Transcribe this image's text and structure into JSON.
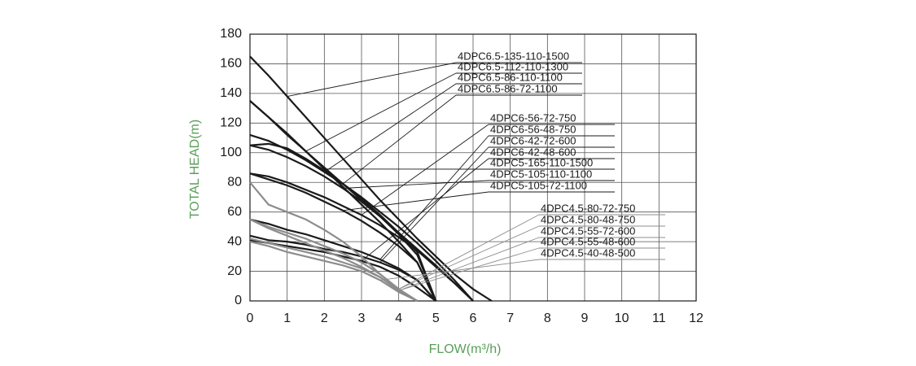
{
  "chart_data": {
    "type": "line",
    "x_label": "FLOW(m³/h)",
    "y_label": "TOTAL HEAD(m)",
    "xlim": [
      0,
      12
    ],
    "xticks": [
      0,
      1,
      2,
      3,
      4,
      5,
      6,
      7,
      8,
      9,
      10,
      11,
      12
    ],
    "ylim": [
      0,
      180
    ],
    "yticks": [
      0,
      20,
      40,
      60,
      80,
      100,
      120,
      140,
      160,
      180
    ],
    "grid": true,
    "x": [
      0,
      0.5,
      1,
      1.5,
      2,
      2.5,
      3,
      3.5,
      4,
      4.5,
      5,
      5.5,
      6,
      6.5
    ],
    "series": [
      {
        "name": "4DPC6.5-135-110-1500",
        "color": "#1a1a1a",
        "values": [
          165,
          152,
          138,
          124,
          110,
          96,
          82,
          68,
          55,
          42,
          30,
          18,
          8,
          0
        ]
      },
      {
        "name": "4DPC6.5-112-110-1300",
        "color": "#1a1a1a",
        "values": [
          135,
          124,
          112,
          101,
          90,
          79,
          68,
          57,
          46,
          35,
          24,
          12,
          0,
          null
        ]
      },
      {
        "name": "4DPC6.5-86-110-1100",
        "color": "#1a1a1a",
        "values": [
          112,
          108,
          102,
          95,
          87,
          79,
          70,
          60,
          50,
          39,
          27,
          14,
          0,
          null
        ]
      },
      {
        "name": "4DPC6.5-86-72-1100",
        "color": "#1a1a1a",
        "values": [
          105,
          106,
          103,
          96,
          88,
          79,
          69,
          58,
          46,
          33,
          0,
          null,
          null,
          null
        ]
      },
      {
        "name": "4DPC6-56-72-750",
        "color": "#1a1a1a",
        "values": [
          86,
          84,
          80,
          75,
          70,
          64,
          58,
          51,
          43,
          34,
          23,
          12,
          0,
          null
        ]
      },
      {
        "name": "4DPC6-56-48-750",
        "color": "#1a1a1a",
        "values": [
          55,
          52,
          48,
          45,
          41,
          37,
          33,
          28,
          22,
          14,
          0,
          null,
          null,
          null
        ]
      },
      {
        "name": "4DPC6-42-72-600",
        "color": "#1a1a1a",
        "values": [
          44,
          41,
          40,
          38,
          35,
          33,
          30,
          26,
          21,
          14,
          0,
          null,
          null,
          null
        ]
      },
      {
        "name": "4DPC6-42-48-600",
        "color": "#1a1a1a",
        "values": [
          41,
          39,
          37,
          35,
          33,
          30,
          27,
          23,
          17,
          9,
          0,
          null,
          null,
          null
        ]
      },
      {
        "name": "4DPC5-165-110-1500",
        "color": "#1a1a1a",
        "values": [
          135,
          124,
          113,
          101,
          89,
          77,
          65,
          53,
          40,
          26,
          0,
          null,
          null,
          null
        ]
      },
      {
        "name": "4DPC5-105-110-1100",
        "color": "#1a1a1a",
        "values": [
          105,
          102,
          97,
          91,
          84,
          76,
          67,
          57,
          45,
          31,
          0,
          null,
          null,
          null
        ]
      },
      {
        "name": "4DPC5-105-72-1100",
        "color": "#1a1a1a",
        "values": [
          86,
          82,
          78,
          73,
          67,
          61,
          54,
          46,
          37,
          26,
          0,
          null,
          null,
          null
        ]
      },
      {
        "name": "4DPC4.5-80-72-750",
        "color": "#8c8c8c",
        "values": [
          80,
          65,
          60,
          55,
          48,
          40,
          30,
          18,
          8,
          0,
          null,
          null,
          null,
          null
        ]
      },
      {
        "name": "4DPC4.5-80-48-750",
        "color": "#8c8c8c",
        "values": [
          55,
          50,
          46,
          42,
          37,
          32,
          26,
          18,
          8,
          0,
          null,
          null,
          null,
          null
        ]
      },
      {
        "name": "4DPC4.5-55-72-600",
        "color": "#8c8c8c",
        "values": [
          55,
          49,
          44,
          39,
          34,
          29,
          23,
          16,
          7,
          0,
          null,
          null,
          null,
          null
        ]
      },
      {
        "name": "4DPC4.5-55-48-600",
        "color": "#8c8c8c",
        "values": [
          42,
          39,
          36,
          33,
          30,
          26,
          22,
          16,
          7,
          0,
          null,
          null,
          null,
          null
        ]
      },
      {
        "name": "4DPC4.5-40-48-500",
        "color": "#8c8c8c",
        "values": [
          40,
          37,
          33,
          30,
          27,
          24,
          20,
          14,
          6,
          0,
          null,
          null,
          null,
          null
        ]
      }
    ]
  }
}
